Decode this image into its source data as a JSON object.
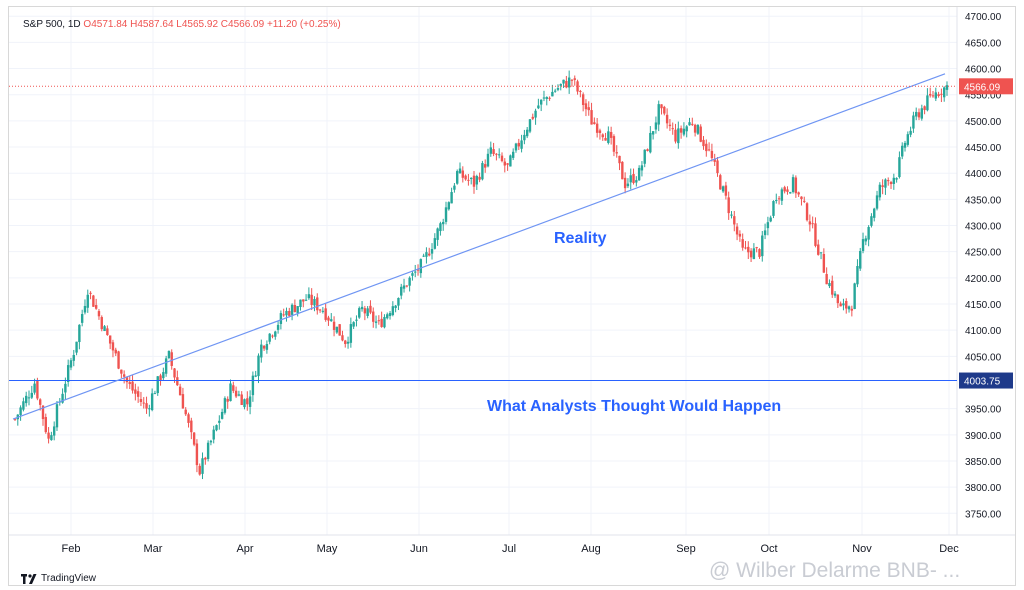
{
  "header": {
    "symbol": "S&P 500, 1D",
    "open": "O4571.84",
    "high": "H4587.64",
    "low": "L4565.92",
    "close": "C4566.09",
    "change": "+11.20 (+0.25%)"
  },
  "brand": "TradingView",
  "watermark": "@ Wilber Delarme BNB- ...",
  "colors": {
    "up": "#26a69a",
    "down": "#ef5350",
    "line": "#2962ff",
    "annotation": "#2962ff"
  },
  "chart_data": {
    "type": "candlestick",
    "y_ticks": [
      3750,
      3800,
      3850,
      3900,
      3950,
      4050,
      4100,
      4150,
      4200,
      4250,
      4300,
      4350,
      4400,
      4450,
      4500,
      4550,
      4600,
      4650,
      4700
    ],
    "y_tick_labels": [
      "3750.00",
      "3800.00",
      "3850.00",
      "3900.00",
      "3950.00",
      "4050.00",
      "4100.00",
      "4150.00",
      "4200.00",
      "4250.00",
      "4300.00",
      "4350.00",
      "4400.00",
      "4450.00",
      "4500.00",
      "4550.00",
      "4600.00",
      "4650.00",
      "4700.00"
    ],
    "ylim": [
      3720,
      4710
    ],
    "x_ticks": [
      "Feb",
      "Mar",
      "Apr",
      "May",
      "Jun",
      "Jul",
      "Aug",
      "Sep",
      "Oct",
      "Nov",
      "Dec"
    ],
    "last_price_label": "4566.09",
    "last_price": 4566.09,
    "analyst_level_label": "4003.75",
    "analyst_level": 4003.75,
    "trend_line": {
      "from": 3930,
      "to": 4590
    },
    "annotations": [
      "Reality",
      "What Analysts Thought Would Happen"
    ],
    "anchors": [
      [
        0,
        3930
      ],
      [
        7,
        4000
      ],
      [
        12,
        3890
      ],
      [
        21,
        4060
      ],
      [
        26,
        4180
      ],
      [
        32,
        4100
      ],
      [
        40,
        4000
      ],
      [
        47,
        3950
      ],
      [
        55,
        4050
      ],
      [
        60,
        3960
      ],
      [
        66,
        3830
      ],
      [
        73,
        3930
      ],
      [
        77,
        3990
      ],
      [
        83,
        3960
      ],
      [
        88,
        4070
      ],
      [
        96,
        4130
      ],
      [
        104,
        4160
      ],
      [
        110,
        4140
      ],
      [
        118,
        4080
      ],
      [
        124,
        4140
      ],
      [
        130,
        4110
      ],
      [
        140,
        4190
      ],
      [
        146,
        4230
      ],
      [
        152,
        4300
      ],
      [
        158,
        4400
      ],
      [
        164,
        4380
      ],
      [
        170,
        4440
      ],
      [
        176,
        4410
      ],
      [
        182,
        4480
      ],
      [
        187,
        4530
      ],
      [
        193,
        4560
      ],
      [
        199,
        4580
      ],
      [
        206,
        4500
      ],
      [
        212,
        4470
      ],
      [
        218,
        4380
      ],
      [
        223,
        4400
      ],
      [
        230,
        4520
      ],
      [
        236,
        4470
      ],
      [
        242,
        4500
      ],
      [
        248,
        4440
      ],
      [
        254,
        4350
      ],
      [
        260,
        4250
      ],
      [
        266,
        4250
      ],
      [
        272,
        4360
      ],
      [
        278,
        4380
      ],
      [
        284,
        4310
      ],
      [
        290,
        4200
      ],
      [
        295,
        4140
      ],
      [
        299,
        4150
      ],
      [
        303,
        4270
      ],
      [
        309,
        4370
      ],
      [
        315,
        4400
      ],
      [
        318,
        4460
      ],
      [
        322,
        4510
      ],
      [
        328,
        4550
      ],
      [
        333,
        4566
      ]
    ]
  }
}
